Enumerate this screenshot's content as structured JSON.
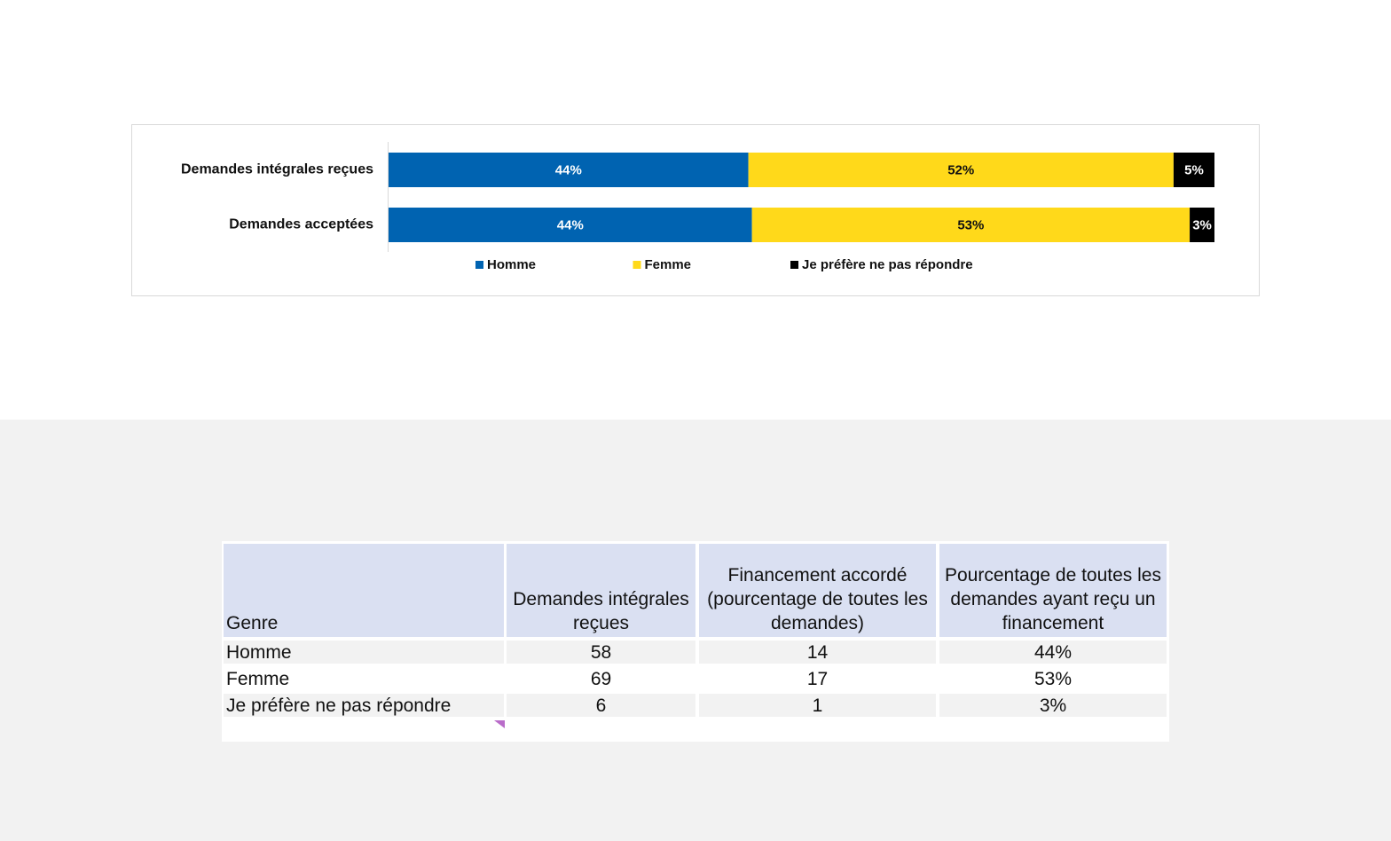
{
  "chart_data": {
    "type": "stacked-bar-horizontal",
    "categories": [
      "Demandes intégrales reçues",
      "Demandes acceptées"
    ],
    "series": [
      {
        "name": "Homme",
        "color": "#0063b1",
        "values": [
          44,
          44
        ],
        "value_labels": [
          "44%",
          "44%"
        ]
      },
      {
        "name": "Femme",
        "color": "#ffd91a",
        "values": [
          52,
          53
        ],
        "value_labels": [
          "52%",
          "53%"
        ]
      },
      {
        "name": "Je préfère ne pas répondre",
        "color": "#000000",
        "values": [
          5,
          3
        ],
        "value_labels": [
          "5%",
          "3%"
        ]
      }
    ],
    "legend": "bottom"
  },
  "table": {
    "header": [
      "Genre",
      "Demandes intégrales reçues",
      "Financement accordé (pourcentage de toutes les demandes)",
      "Pourcentage de toutes les demandes ayant reçu un financement"
    ],
    "rows": [
      [
        "Homme",
        58,
        14,
        "44%"
      ],
      [
        "Femme",
        69,
        17,
        "53%"
      ],
      [
        "Je préfère ne pas répondre",
        6,
        1,
        "3%"
      ]
    ]
  }
}
